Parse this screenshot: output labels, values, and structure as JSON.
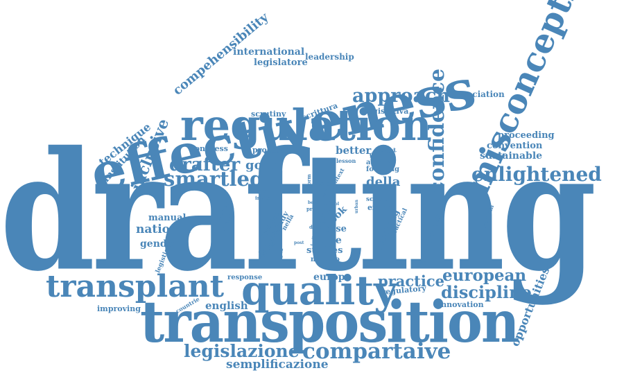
{
  "color": "#4a86b8",
  "words": [
    {
      "id": "drafting",
      "text": "drafting"
    },
    {
      "id": "transposition",
      "text": "transposition"
    },
    {
      "id": "effectiveness",
      "text": "effectiveness"
    },
    {
      "id": "regulation",
      "text": "regulation"
    },
    {
      "id": "misconception",
      "text": "misconception"
    },
    {
      "id": "quality",
      "text": "quality"
    },
    {
      "id": "transplant",
      "text": "transplant"
    },
    {
      "id": "compartaive",
      "text": "compartaive"
    },
    {
      "id": "legislazione",
      "text": "legislazione"
    },
    {
      "id": "semplificazione",
      "text": "semplificazione"
    },
    {
      "id": "confidence",
      "text": "confidence"
    },
    {
      "id": "approach",
      "text": "approach"
    },
    {
      "id": "enlightened",
      "text": "enlightened"
    },
    {
      "id": "drafter",
      "text": "drafter"
    },
    {
      "id": "smartlegal",
      "text": "smartlegal"
    },
    {
      "id": "european",
      "text": "european"
    },
    {
      "id": "discipline",
      "text": "discipline"
    },
    {
      "id": "practice",
      "text": "practice"
    },
    {
      "id": "opportunities",
      "text": "opportunities"
    },
    {
      "id": "comprehensibility",
      "text": "compehensibility"
    },
    {
      "id": "technique",
      "text": "technique"
    },
    {
      "id": "inclusive",
      "text": "inclusive"
    },
    {
      "id": "institution",
      "text": "institution"
    },
    {
      "id": "international",
      "text": "international"
    },
    {
      "id": "leadership",
      "text": "leadership"
    },
    {
      "id": "legislatore",
      "text": "legislatore"
    },
    {
      "id": "association",
      "text": "association"
    },
    {
      "id": "proceeding",
      "text": "proceeding"
    },
    {
      "id": "convention",
      "text": "convention"
    },
    {
      "id": "sustainable",
      "text": "sustainable"
    },
    {
      "id": "scrutiny",
      "text": "scrutiny"
    },
    {
      "id": "scrittura",
      "text": "scrittura"
    },
    {
      "id": "legislativa",
      "text": "legislativa"
    },
    {
      "id": "congress",
      "text": "congress"
    },
    {
      "id": "processo",
      "text": "processo"
    },
    {
      "id": "better",
      "text": "better"
    },
    {
      "id": "product",
      "text": "product"
    },
    {
      "id": "good",
      "text": "good"
    },
    {
      "id": "lesson",
      "text": "lesson"
    },
    {
      "id": "achieve",
      "text": "achieve"
    },
    {
      "id": "focusing",
      "text": "focusing"
    },
    {
      "id": "della",
      "text": "della"
    },
    {
      "id": "plain",
      "text": "plain"
    },
    {
      "id": "testo",
      "text": "testo"
    },
    {
      "id": "context",
      "text": "context"
    },
    {
      "id": "form",
      "text": "form"
    },
    {
      "id": "invite",
      "text": "invite"
    },
    {
      "id": "law",
      "text": "law"
    },
    {
      "id": "manual",
      "text": "manual"
    },
    {
      "id": "national",
      "text": "national"
    },
    {
      "id": "gender",
      "text": "gender"
    },
    {
      "id": "legistics",
      "text": "legistics"
    },
    {
      "id": "policies",
      "text": "policies"
    },
    {
      "id": "formal",
      "text": "formal"
    },
    {
      "id": "focus",
      "text": "focus"
    },
    {
      "id": "service",
      "text": "service"
    },
    {
      "id": "study",
      "text": "study"
    },
    {
      "id": "nella",
      "text": "nella"
    },
    {
      "id": "best",
      "text": "best"
    },
    {
      "id": "proc",
      "text": "proc"
    },
    {
      "id": "tool",
      "text": "tool"
    },
    {
      "id": "limit",
      "text": "limit"
    },
    {
      "id": "book",
      "text": "book"
    },
    {
      "id": "case",
      "text": "case"
    },
    {
      "id": "delle",
      "text": "delle"
    },
    {
      "id": "scholar",
      "text": "scholar"
    },
    {
      "id": "expert",
      "text": "expert"
    },
    {
      "id": "teaching",
      "text": "teaching"
    },
    {
      "id": "practical",
      "text": "practical"
    },
    {
      "id": "urban",
      "text": "urban"
    },
    {
      "id": "practitioner",
      "text": "practitioner"
    },
    {
      "id": "grabham",
      "text": "grabham"
    },
    {
      "id": "provide",
      "text": "provide"
    },
    {
      "id": "reform",
      "text": "reform"
    },
    {
      "id": "lingua",
      "text": "lingua"
    },
    {
      "id": "post",
      "text": "post"
    },
    {
      "id": "judge",
      "text": "judge"
    },
    {
      "id": "studies",
      "text": "studies"
    },
    {
      "id": "metodo",
      "text": "metodo"
    },
    {
      "id": "response",
      "text": "response"
    },
    {
      "id": "europe",
      "text": "europe"
    },
    {
      "id": "regulatory",
      "text": "regulatory"
    },
    {
      "id": "innovation",
      "text": "innovation"
    },
    {
      "id": "improving",
      "text": "improving"
    },
    {
      "id": "countrie",
      "text": "countrie"
    },
    {
      "id": "english",
      "text": "english"
    }
  ]
}
